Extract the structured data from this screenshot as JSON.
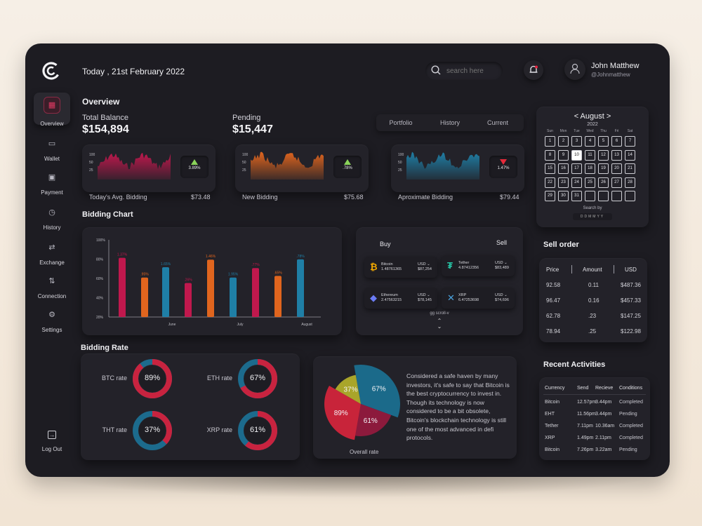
{
  "header": {
    "date": "Today , 21st February 2022",
    "search_placeholder": "search here",
    "user_name": "John Matthew",
    "user_handle": "@Johnmatthew"
  },
  "sidebar": {
    "items": [
      {
        "label": "Overview",
        "icon": "grid-icon"
      },
      {
        "label": "Wallet",
        "icon": "wallet-icon"
      },
      {
        "label": "Payment",
        "icon": "payment-icon"
      },
      {
        "label": "History",
        "icon": "clock-icon"
      },
      {
        "label": "Exchange",
        "icon": "exchange-icon"
      },
      {
        "label": "Connection",
        "icon": "connection-icon"
      },
      {
        "label": "Settings",
        "icon": "gear-icon"
      }
    ],
    "logout": "Log Out"
  },
  "overview": {
    "title": "Overview",
    "total_label": "Total Balance",
    "total_value": "$154,894",
    "pending_label": "Pending",
    "pending_value": "$15,447",
    "tabs": [
      "Portfolio",
      "History",
      "Current"
    ],
    "mini_cards": [
      {
        "label": "Today's Avg. Bidding",
        "value": "$73.48",
        "change": "3.89%",
        "direction": "up",
        "color": "#c0184d",
        "axis": [
          "100",
          "50",
          "25"
        ]
      },
      {
        "label": "New Bidding",
        "value": "$75.68",
        "change": ".78%",
        "direction": "up",
        "color": "#e0651e",
        "axis": [
          "100",
          "50",
          "25"
        ]
      },
      {
        "label": "Aproximate Bidding",
        "value": "$79.44",
        "change": "1.47%",
        "direction": "down",
        "color": "#1f7fa6",
        "axis": [
          "100",
          "50",
          "25"
        ]
      }
    ]
  },
  "calendar": {
    "month": "< August >",
    "year": "2022",
    "weekdays": [
      "Sun",
      "Mon",
      "Tue",
      "Wed",
      "Thu",
      "Fri",
      "Sat"
    ],
    "days": [
      "1",
      "2",
      "3",
      "4",
      "5",
      "6",
      "7",
      "8",
      "9",
      "10",
      "11",
      "12",
      "13",
      "14",
      "15",
      "16",
      "17",
      "18",
      "19",
      "20",
      "21",
      "22",
      "23",
      "24",
      "25",
      "26",
      "27",
      "28",
      "29",
      "30",
      "31",
      "",
      "",
      "",
      ""
    ],
    "today": "10",
    "search_label": "Search by",
    "search_options": [
      "D",
      "D",
      "M",
      "M",
      "Y",
      "Y"
    ]
  },
  "bidding_chart": {
    "title": "Bidding Chart",
    "chart_data": {
      "type": "bar",
      "categories": [
        "June",
        "July",
        "August"
      ],
      "ylabels": [
        "100%",
        "80%",
        "60%",
        "40%",
        "20%"
      ],
      "ylim": [
        20,
        100
      ],
      "series_colors": [
        "#c0184d",
        "#e0651e",
        "#1f7fa6"
      ],
      "bars": [
        {
          "value": 81.37,
          "label": "1.37%",
          "color": "#c0184d",
          "group": 0
        },
        {
          "value": 60.95,
          "label": ".95%",
          "color": "#e0651e",
          "group": 0
        },
        {
          "value": 71.65,
          "label": "1.65%",
          "color": "#1f7fa6",
          "group": 0
        },
        {
          "value": 55.26,
          "label": ".26%",
          "color": "#c0184d",
          "group": 1
        },
        {
          "value": 79.46,
          "label": "1.46%",
          "color": "#e0651e",
          "group": 1
        },
        {
          "value": 60.95,
          "label": "1.95%",
          "color": "#1f7fa6",
          "group": 1
        },
        {
          "value": 70.77,
          "label": ".77%",
          "color": "#c0184d",
          "group": 2
        },
        {
          "value": 62.65,
          "label": ".65%",
          "color": "#e0651e",
          "group": 2
        },
        {
          "value": 79.78,
          "label": ".78%",
          "color": "#1f7fa6",
          "group": 2
        }
      ]
    }
  },
  "exchange": {
    "buy": "Buy",
    "sell": "Sell",
    "coins": [
      {
        "name": "Bitcoin",
        "amount": "1.48761365",
        "fiat": "USD",
        "price": "$87,254",
        "color": "#f2a900",
        "icon": "bitcoin-icon",
        "glyph": "₿"
      },
      {
        "name": "Tether",
        "amount": "4.87412356",
        "fiat": "USD",
        "price": "$83,489",
        "color": "#26c6a6",
        "icon": "tether-icon",
        "glyph": "₮"
      },
      {
        "name": "Ethereum",
        "amount": "2.47563215",
        "fiat": "USD",
        "price": "$78,145",
        "color": "#6b7cf5",
        "icon": "ethereum-icon",
        "glyph": "◆"
      },
      {
        "name": "XRP",
        "amount": "6.47253698",
        "fiat": "USD",
        "price": "$74,696",
        "color": "#4aa3df",
        "icon": "xrp-icon",
        "glyph": "✕"
      }
    ],
    "scroll_label": "gg scroll-v"
  },
  "sell_order": {
    "title": "Sell order",
    "headers": [
      "Price",
      "Amount",
      "USD"
    ],
    "rows": [
      [
        "92.58",
        "0.11",
        "$487.36"
      ],
      [
        "96.47",
        "0.16",
        "$457.33"
      ],
      [
        "62.78",
        ".23",
        "$147.25"
      ],
      [
        "78.94",
        ".25",
        "$122.98"
      ]
    ]
  },
  "bidding_rate": {
    "title": "Bidding Rate",
    "rates": [
      {
        "label": "BTC rate",
        "value": "89%",
        "pct": 0.89
      },
      {
        "label": "ETH rate",
        "value": "67%",
        "pct": 0.67
      },
      {
        "label": "THT rate",
        "value": "37%",
        "pct": 0.37
      },
      {
        "label": "XRP rate",
        "value": "61%",
        "pct": 0.61
      }
    ]
  },
  "overall": {
    "label": "Overall rate",
    "slices": [
      {
        "value": "67%",
        "color": "#1b6a8a"
      },
      {
        "value": "61%",
        "color": "#8c1a3c"
      },
      {
        "value": "89%",
        "color": "#c8243a"
      },
      {
        "value": "37%",
        "color": "#a9a52a"
      }
    ],
    "text": "Considered a safe haven by many investors, it's safe to say that Bitcoin is the best cryptocurrency to invest in. Though its technology is now considered to be a bit obsolete, Bitcoin's blockchain technology is still one of the most advanced in defi protocols."
  },
  "activities": {
    "title": "Recent Activities",
    "headers": [
      "Currency",
      "Send",
      "Recieve",
      "Conditions"
    ],
    "rows": [
      [
        "Bitcoin",
        "12.57pm",
        "3.44pm",
        "Completed"
      ],
      [
        "EHT",
        "11.56pm",
        "3.44pm",
        "Pending"
      ],
      [
        "Tether",
        "7.11pm",
        "10.36am",
        "Completed"
      ],
      [
        "XRP",
        "1.49pm",
        "2.11pm",
        "Completed"
      ],
      [
        "Bitcoin",
        "7.26pm",
        "3.22am",
        "Pending"
      ]
    ]
  }
}
